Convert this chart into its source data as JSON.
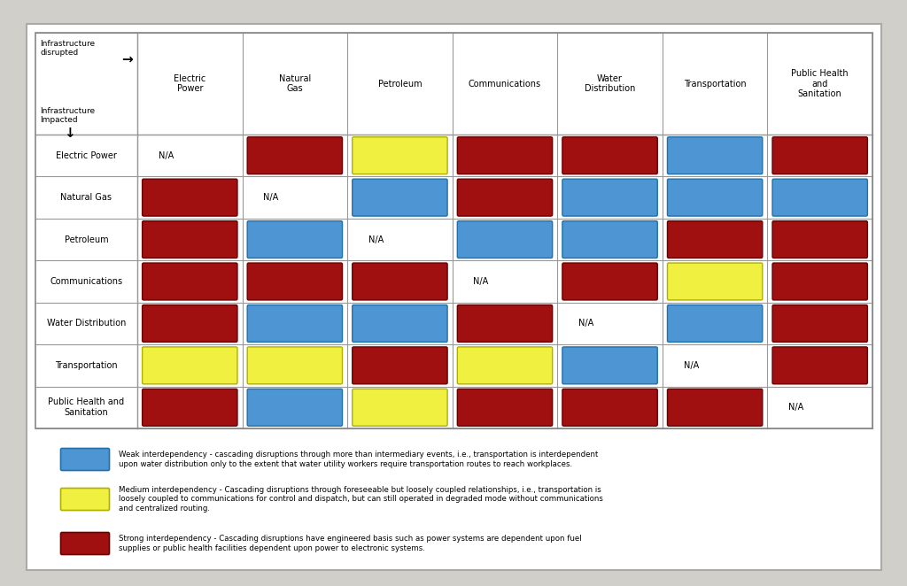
{
  "col_headers": [
    "Electric\nPower",
    "Natural\nGas",
    "Petroleum",
    "Communications",
    "Water\nDistribution",
    "Transportation",
    "Public Health\nand\nSanitation"
  ],
  "row_headers": [
    "Electric Power",
    "Natural Gas",
    "Petroleum",
    "Communications",
    "Water Distribution",
    "Transportation",
    "Public Health and\nSanitation"
  ],
  "grid": [
    [
      "N/A",
      "R",
      "Y",
      "R",
      "R",
      "B",
      "R"
    ],
    [
      "R",
      "N/A",
      "B",
      "R",
      "B",
      "B",
      "B"
    ],
    [
      "R",
      "B",
      "N/A",
      "B",
      "B",
      "R",
      "R"
    ],
    [
      "R",
      "R",
      "R",
      "N/A",
      "R",
      "Y",
      "R"
    ],
    [
      "R",
      "B",
      "B",
      "R",
      "N/A",
      "B",
      "R"
    ],
    [
      "Y",
      "Y",
      "R",
      "Y",
      "B",
      "N/A",
      "R"
    ],
    [
      "R",
      "B",
      "Y",
      "R",
      "R",
      "R",
      "N/A"
    ]
  ],
  "color_map": {
    "R": "#A01010",
    "B": "#4E96D3",
    "Y": "#F0F040",
    "N/A": "#FFFFFF"
  },
  "bg_color": "#D0CFCA",
  "chart_bg": "#FFFFFF",
  "border_color": "#999999",
  "legend_blue_text": "Weak interdependency - cascading disruptions through more than intermediary events, i.e., transportation is interdependent\nupon water distribution only to the extent that water utility workers require transportation routes to reach workplaces.",
  "legend_yellow_text": "Medium interdependency - Cascading disruptions through foreseeable but loosely coupled relationships, i.e., transportation is\nloosely coupled to communications for control and dispatch, but can still operated in degraded mode without communications\nand centralized routing.",
  "legend_red_text": "Strong interdependency - Cascading disruptions have engineered basis such as power systems are dependent upon fuel\nsupplies or public health facilities dependent upon power to electronic systems.",
  "header_label_disrupted": "Infrastructure\ndisrupted",
  "header_arrow_right": "→",
  "header_label_impacted": "Infrastructure\nImpacted",
  "header_arrow_down": "↓"
}
